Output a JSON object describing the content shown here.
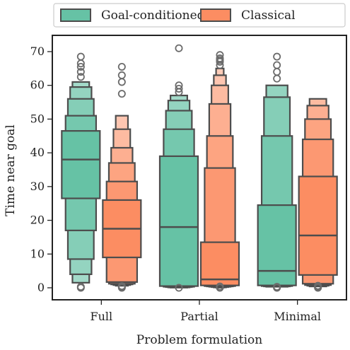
{
  "chart_data": {
    "type": "boxen",
    "title": "",
    "xlabel": "Problem formulation",
    "ylabel": "Time near goal",
    "categories": [
      "Full",
      "Partial",
      "Minimal"
    ],
    "ylim": [
      -3.5,
      75
    ],
    "yticks": [
      0,
      10,
      20,
      30,
      40,
      50,
      60,
      70
    ],
    "legend": {
      "placement": "top (above plot)",
      "columns": 2
    },
    "grid": false,
    "series": [
      {
        "name": "Goal-conditioned",
        "color": "#66c2a5",
        "groups": [
          {
            "category": "Full",
            "median": 38,
            "levels": [
              [
                26.5,
                46.5
              ],
              [
                17,
                51
              ],
              [
                8.5,
                56
              ],
              [
                4,
                59.5
              ],
              [
                1.5,
                61
              ]
            ],
            "outliers": [
              0,
              0.3,
              62.5,
              64,
              65.5,
              66.5,
              68.5
            ]
          },
          {
            "category": "Partial",
            "median": 18,
            "levels": [
              [
                0.5,
                39
              ],
              [
                0.3,
                47
              ],
              [
                0.2,
                52.5
              ],
              [
                0.1,
                55.5
              ],
              [
                0.05,
                57
              ]
            ],
            "outliers": [
              0,
              58,
              59,
              60,
              71
            ]
          },
          {
            "category": "Minimal",
            "median": 5,
            "levels": [
              [
                0.7,
                24.5
              ],
              [
                0.5,
                45
              ],
              [
                0.4,
                56.5
              ],
              [
                0.3,
                60
              ]
            ],
            "outliers": [
              0,
              0.3,
              62,
              64,
              66,
              68.5
            ]
          }
        ]
      },
      {
        "name": "Classical",
        "color": "#fc8d62",
        "groups": [
          {
            "category": "Full",
            "median": 17.5,
            "levels": [
              [
                9,
                26
              ],
              [
                1.7,
                31.5
              ],
              [
                1.2,
                37
              ],
              [
                1,
                41.5
              ],
              [
                0.8,
                47
              ],
              [
                0.6,
                51
              ]
            ],
            "outliers": [
              0,
              0.2,
              0.5,
              57.5,
              61,
              63,
              65.5
            ]
          },
          {
            "category": "Partial",
            "median": 2.5,
            "levels": [
              [
                0.7,
                13.5
              ],
              [
                0.5,
                35.5
              ],
              [
                0.4,
                45
              ],
              [
                0.3,
                54.5
              ],
              [
                0.2,
                60
              ],
              [
                0.1,
                63
              ],
              [
                0.05,
                65
              ]
            ],
            "outliers": [
              0,
              0.4,
              66,
              67,
              67.5,
              68,
              69
            ]
          },
          {
            "category": "Minimal",
            "median": 15.5,
            "levels": [
              [
                3.8,
                33
              ],
              [
                1.2,
                44
              ],
              [
                0.8,
                50
              ],
              [
                0.6,
                54
              ],
              [
                0.4,
                56
              ]
            ],
            "outliers": [
              0,
              0.3,
              0.6
            ]
          }
        ]
      }
    ]
  }
}
